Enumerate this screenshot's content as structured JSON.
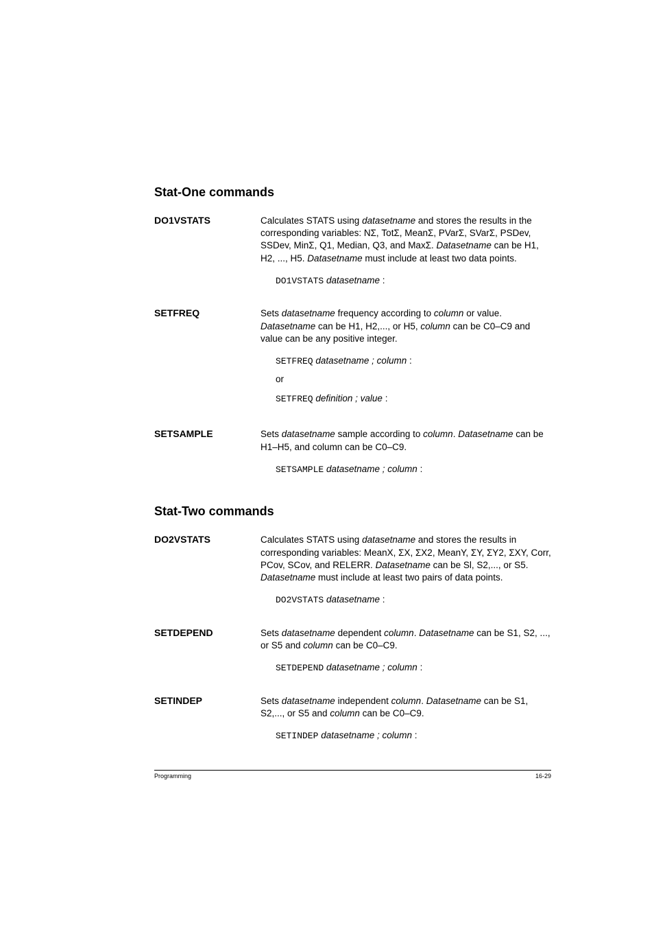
{
  "sections": [
    {
      "heading": "Stat-One commands",
      "entries": [
        {
          "term": "DO1VSTATS",
          "body_html": "Calculates STATS using <span class='italic'>datasetname</span> and stores the results in the corresponding variables: NΣ, TotΣ, MeanΣ, PVarΣ, SVarΣ, PSDev, SSDev, MinΣ, Q1, Median, Q3, and MaxΣ. <span class='italic'>Datasetname</span> can be H1, H2, ..., H5. <span class='italic'>Datasetname</span> must include at least two data points.",
          "codes": [
            {
              "cmd": "DO1VSTATS",
              "args": "datasetname",
              "suffix": " :"
            }
          ]
        },
        {
          "term": "SETFREQ",
          "body_html": "Sets <span class='italic'>datasetname</span> frequency according to <span class='italic'>column</span> or value. <span class='italic'>Datasetname</span> can be H1, H2,..., or H5, <span class='italic'>column</span> can be C0–C9 and value can be any positive integer.",
          "codes": [
            {
              "cmd": "SETFREQ",
              "args": "datasetname ; column",
              "suffix": " :"
            },
            {
              "or": "or"
            },
            {
              "cmd": "SETFREQ",
              "args": "definition ; value",
              "suffix": " :"
            }
          ]
        },
        {
          "term": "SETSAMPLE",
          "body_html": "Sets <span class='italic'>datasetname</span> sample according to <span class='italic'>column</span>. <span class='italic'>Datasetname</span> can be H1–H5, and column can be C0–C9.",
          "codes": [
            {
              "cmd": "SETSAMPLE",
              "args": "datasetname ; column",
              "suffix": " :"
            }
          ]
        }
      ]
    },
    {
      "heading": "Stat-Two commands",
      "entries": [
        {
          "term": "DO2VSTATS",
          "body_html": "Calculates STATS using <span class='italic'>datasetname</span> and stores the results in corresponding variables: MeanX, ΣX, ΣX2, MeanY, ΣY, ΣY2, ΣXY, Corr, PCov, SCov, and RELERR. <span class='italic'>Datasetname</span> can be Sl, S2,..., or S5. <span class='italic'>Datasetname</span> must include at least two pairs of data points.",
          "codes": [
            {
              "cmd": "DO2VSTATS",
              "args": "datasetname",
              "suffix": " :"
            }
          ]
        },
        {
          "term": "SETDEPEND",
          "body_html": "Sets <span class='italic'>datasetname</span> dependent <span class='italic'>column</span>. <span class='italic'>Datasetname</span> can be S1, S2, ..., or S5 and <span class='italic'>column</span> can be C0–C9.",
          "codes": [
            {
              "cmd": "SETDEPEND",
              "args": "datasetname ; column",
              "suffix": " :"
            }
          ]
        },
        {
          "term": "SETINDEP",
          "body_html": "Sets <span class='italic'>datasetname</span> independent <span class='italic'>column</span>. <span class='italic'>Datasetname</span> can be S1, S2,..., or S5 and <span class='italic'>column</span> can be C0–C9.",
          "codes": [
            {
              "cmd": "SETINDEP",
              "args": "datasetname ; column",
              "suffix": " :"
            }
          ]
        }
      ]
    }
  ],
  "footer": {
    "left": "Programming",
    "right": "16-29"
  }
}
